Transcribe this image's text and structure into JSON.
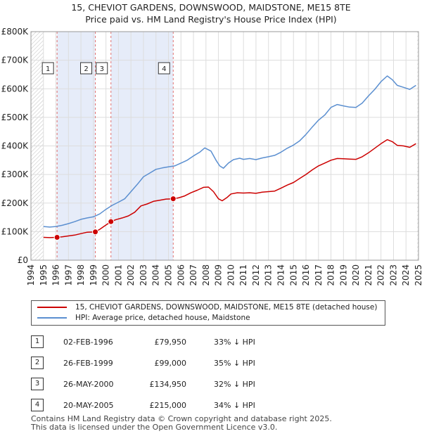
{
  "title_line1": "15, CHEVIOT GARDENS, DOWNSWOOD, MAIDSTONE, ME15 8TE",
  "title_line2": "Price paid vs. HM Land Registry's House Price Index (HPI)",
  "chart_data": {
    "type": "line",
    "title": "15, CHEVIOT GARDENS, DOWNSWOOD, MAIDSTONE, ME15 8TE — Price paid vs. HM Land Registry's House Price Index (HPI)",
    "xlabel": "",
    "ylabel": "",
    "xlim": [
      1994.0,
      2025.0
    ],
    "ylim": [
      0,
      800000
    ],
    "y_ticks": [
      {
        "value": 0,
        "label": "£0"
      },
      {
        "value": 100000,
        "label": "£100K"
      },
      {
        "value": 200000,
        "label": "£200K"
      },
      {
        "value": 300000,
        "label": "£300K"
      },
      {
        "value": 400000,
        "label": "£400K"
      },
      {
        "value": 500000,
        "label": "£500K"
      },
      {
        "value": 600000,
        "label": "£600K"
      },
      {
        "value": 700000,
        "label": "£700K"
      },
      {
        "value": 800000,
        "label": "£800K"
      }
    ],
    "x_ticks": [
      1994,
      1995,
      1996,
      1997,
      1998,
      1999,
      2000,
      2001,
      2002,
      2003,
      2004,
      2005,
      2006,
      2007,
      2008,
      2009,
      2010,
      2011,
      2012,
      2013,
      2014,
      2015,
      2016,
      2017,
      2018,
      2019,
      2020,
      2021,
      2022,
      2023,
      2024,
      2025
    ],
    "grid": true,
    "series": [
      {
        "name": "15, CHEVIOT GARDENS, DOWNSWOOD, MAIDSTONE, ME15 8TE (detached house)",
        "color": "#cc0000",
        "points": [
          [
            1995.0,
            80000
          ],
          [
            1995.5,
            79000
          ],
          [
            1996.09,
            79950
          ],
          [
            1996.5,
            82000
          ],
          [
            1997.0,
            85000
          ],
          [
            1997.5,
            88000
          ],
          [
            1998.0,
            93000
          ],
          [
            1998.5,
            98000
          ],
          [
            1999.15,
            99000
          ],
          [
            1999.5,
            108000
          ],
          [
            2000.0,
            123000
          ],
          [
            2000.4,
            134950
          ],
          [
            2000.8,
            142000
          ],
          [
            2001.3,
            148000
          ],
          [
            2001.8,
            155000
          ],
          [
            2002.3,
            168000
          ],
          [
            2002.8,
            190000
          ],
          [
            2003.3,
            197000
          ],
          [
            2003.8,
            206000
          ],
          [
            2004.3,
            210000
          ],
          [
            2004.8,
            214000
          ],
          [
            2005.38,
            215000
          ],
          [
            2005.8,
            218000
          ],
          [
            2006.3,
            225000
          ],
          [
            2006.8,
            236000
          ],
          [
            2007.3,
            245000
          ],
          [
            2007.8,
            255000
          ],
          [
            2008.2,
            256000
          ],
          [
            2008.6,
            240000
          ],
          [
            2009.0,
            215000
          ],
          [
            2009.3,
            208000
          ],
          [
            2009.7,
            220000
          ],
          [
            2010.0,
            232000
          ],
          [
            2010.5,
            236000
          ],
          [
            2011.0,
            235000
          ],
          [
            2011.5,
            236000
          ],
          [
            2012.0,
            234000
          ],
          [
            2012.5,
            238000
          ],
          [
            2013.0,
            240000
          ],
          [
            2013.5,
            242000
          ],
          [
            2014.0,
            252000
          ],
          [
            2014.5,
            263000
          ],
          [
            2015.0,
            272000
          ],
          [
            2015.5,
            286000
          ],
          [
            2016.0,
            300000
          ],
          [
            2016.5,
            316000
          ],
          [
            2017.0,
            330000
          ],
          [
            2017.5,
            340000
          ],
          [
            2018.0,
            350000
          ],
          [
            2018.5,
            356000
          ],
          [
            2019.0,
            355000
          ],
          [
            2019.5,
            354000
          ],
          [
            2020.0,
            353000
          ],
          [
            2020.5,
            362000
          ],
          [
            2021.0,
            376000
          ],
          [
            2021.5,
            392000
          ],
          [
            2022.0,
            408000
          ],
          [
            2022.5,
            422000
          ],
          [
            2022.9,
            415000
          ],
          [
            2023.3,
            402000
          ],
          [
            2023.8,
            400000
          ],
          [
            2024.3,
            395000
          ],
          [
            2024.8,
            408000
          ]
        ]
      },
      {
        "name": "HPI: Average price, detached house, Maidstone",
        "color": "#5b8fd0",
        "points": [
          [
            1995.0,
            118000
          ],
          [
            1995.5,
            116000
          ],
          [
            1996.0,
            118000
          ],
          [
            1996.5,
            122000
          ],
          [
            1997.0,
            128000
          ],
          [
            1997.5,
            135000
          ],
          [
            1998.0,
            143000
          ],
          [
            1998.5,
            148000
          ],
          [
            1999.0,
            152000
          ],
          [
            1999.5,
            162000
          ],
          [
            2000.0,
            178000
          ],
          [
            2000.5,
            192000
          ],
          [
            2001.0,
            203000
          ],
          [
            2001.5,
            215000
          ],
          [
            2002.0,
            240000
          ],
          [
            2002.5,
            265000
          ],
          [
            2003.0,
            292000
          ],
          [
            2003.5,
            305000
          ],
          [
            2004.0,
            318000
          ],
          [
            2004.5,
            323000
          ],
          [
            2005.0,
            327000
          ],
          [
            2005.5,
            330000
          ],
          [
            2006.0,
            340000
          ],
          [
            2006.5,
            350000
          ],
          [
            2007.0,
            365000
          ],
          [
            2007.5,
            378000
          ],
          [
            2007.9,
            393000
          ],
          [
            2008.4,
            382000
          ],
          [
            2008.8,
            350000
          ],
          [
            2009.1,
            330000
          ],
          [
            2009.4,
            322000
          ],
          [
            2009.8,
            340000
          ],
          [
            2010.2,
            352000
          ],
          [
            2010.7,
            357000
          ],
          [
            2011.0,
            353000
          ],
          [
            2011.5,
            356000
          ],
          [
            2012.0,
            352000
          ],
          [
            2012.5,
            358000
          ],
          [
            2013.0,
            362000
          ],
          [
            2013.5,
            367000
          ],
          [
            2014.0,
            378000
          ],
          [
            2014.5,
            392000
          ],
          [
            2015.0,
            403000
          ],
          [
            2015.5,
            418000
          ],
          [
            2016.0,
            440000
          ],
          [
            2016.5,
            466000
          ],
          [
            2017.0,
            490000
          ],
          [
            2017.5,
            508000
          ],
          [
            2018.0,
            535000
          ],
          [
            2018.5,
            545000
          ],
          [
            2019.0,
            540000
          ],
          [
            2019.5,
            536000
          ],
          [
            2020.0,
            535000
          ],
          [
            2020.5,
            550000
          ],
          [
            2021.0,
            575000
          ],
          [
            2021.5,
            598000
          ],
          [
            2022.0,
            625000
          ],
          [
            2022.5,
            645000
          ],
          [
            2022.9,
            632000
          ],
          [
            2023.3,
            612000
          ],
          [
            2023.8,
            605000
          ],
          [
            2024.3,
            598000
          ],
          [
            2024.8,
            612000
          ]
        ]
      }
    ],
    "sale_markers": [
      {
        "id": "1",
        "x": 1996.09,
        "value": 79950
      },
      {
        "id": "2",
        "x": 1999.15,
        "value": 99000
      },
      {
        "id": "3",
        "x": 2000.4,
        "value": 134950
      },
      {
        "id": "4",
        "x": 2005.38,
        "value": 215000
      }
    ],
    "shaded_ranges": [
      [
        1996.09,
        1999.15
      ],
      [
        2000.4,
        2005.38
      ]
    ],
    "hatched_ranges": [
      [
        1994.0,
        1995.0
      ],
      [
        2024.9,
        2025.0
      ]
    ],
    "legend_position": "below"
  },
  "legend": {
    "property_label": "15, CHEVIOT GARDENS, DOWNSWOOD, MAIDSTONE, ME15 8TE (detached house)",
    "hpi_label": "HPI: Average price, detached house, Maidstone",
    "property_color": "#cc0000",
    "hpi_color": "#5b8fd0"
  },
  "table": [
    {
      "id": "1",
      "date": "02-FEB-1996",
      "price": "£79,950",
      "diff": "33% ↓ HPI"
    },
    {
      "id": "2",
      "date": "26-FEB-1999",
      "price": "£99,000",
      "diff": "35% ↓ HPI"
    },
    {
      "id": "3",
      "date": "26-MAY-2000",
      "price": "£134,950",
      "diff": "32% ↓ HPI"
    },
    {
      "id": "4",
      "date": "20-MAY-2005",
      "price": "£215,000",
      "diff": "34% ↓ HPI"
    }
  ],
  "footer_line1": "Contains HM Land Registry data © Crown copyright and database right 2025.",
  "footer_line2": "This data is licensed under the Open Government Licence v3.0."
}
